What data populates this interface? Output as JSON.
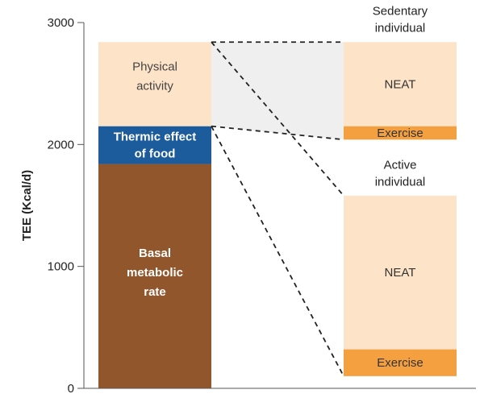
{
  "chart_data": {
    "type": "bar",
    "ylabel": "TEE (Kcal/d)",
    "ylim": [
      0,
      3000
    ],
    "yticks": [
      "0",
      "1000",
      "2000",
      "3000"
    ],
    "grid": false,
    "bars": [
      {
        "name": "main",
        "segments": [
          {
            "label": [
              "Basal",
              "metabolic",
              "rate"
            ],
            "bottom": 0,
            "top": 1840,
            "color": "#92562d",
            "text_color": "#ffffff",
            "bold": true
          },
          {
            "label": [
              "Thermic effect",
              "of food"
            ],
            "bottom": 1840,
            "top": 2150,
            "color": "#1c5c9c",
            "text_color": "#ffffff",
            "bold": true
          },
          {
            "label": [
              "Physical",
              "activity"
            ],
            "bottom": 2150,
            "top": 2840,
            "color": "#fde4c8",
            "text_color": "#444444",
            "bold": false
          }
        ]
      },
      {
        "name": "sedentary",
        "heading": [
          "Sedentary",
          "individual"
        ],
        "segments": [
          {
            "label": [
              "Exercise"
            ],
            "bottom": 2040,
            "top": 2150,
            "color": "#f5a040",
            "text_color": "#333333",
            "bold": false
          },
          {
            "label": [
              "NEAT"
            ],
            "bottom": 2150,
            "top": 2840,
            "color": "#fde4c8",
            "text_color": "#333333",
            "bold": false
          }
        ]
      },
      {
        "name": "active",
        "heading": [
          "Active",
          "individual"
        ],
        "segments": [
          {
            "label": [
              "Exercise"
            ],
            "bottom": 100,
            "top": 320,
            "color": "#f5a040",
            "text_color": "#333333",
            "bold": false
          },
          {
            "label": [
              "NEAT"
            ],
            "bottom": 320,
            "top": 1580,
            "color": "#fde4c8",
            "text_color": "#333333",
            "bold": false
          }
        ]
      }
    ],
    "connector_color": "#efefef"
  }
}
